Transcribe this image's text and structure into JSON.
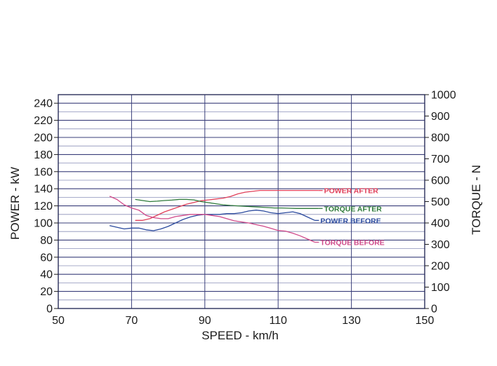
{
  "chart_data": {
    "type": "line",
    "title": "",
    "xlabel": "SPEED - km/h",
    "ylabel": "POWER - kW",
    "y2label": "TORQUE - N",
    "xlim": [
      50,
      150
    ],
    "ylim": [
      0,
      250
    ],
    "y2lim": [
      0,
      1000
    ],
    "x_ticks": [
      "50",
      "70",
      "90",
      "110",
      "130",
      "150"
    ],
    "y_ticks": [
      "0",
      "20",
      "40",
      "60",
      "80",
      "100",
      "120",
      "140",
      "160",
      "180",
      "200",
      "220",
      "240"
    ],
    "y2_ticks": [
      "0",
      "100",
      "200",
      "300",
      "400",
      "500",
      "600",
      "700",
      "800",
      "900",
      "1000"
    ],
    "grid": true,
    "legend": "inline-right",
    "series": [
      {
        "name": "POWER AFTER",
        "axis": "left",
        "color": "#e0405a",
        "x": [
          71,
          73,
          75,
          77,
          79,
          81,
          83,
          85,
          87,
          89,
          91,
          93,
          95,
          97,
          99,
          101,
          103,
          105,
          107,
          109,
          111,
          113,
          115,
          117,
          119,
          121
        ],
        "y": [
          103,
          103,
          105,
          109,
          113,
          116,
          119,
          122,
          124,
          126,
          127,
          128,
          129,
          131,
          134,
          136,
          137,
          138,
          138,
          138,
          138,
          138,
          138,
          138,
          138,
          138
        ]
      },
      {
        "name": "TORQUE AFTER",
        "axis": "right",
        "color": "#2e7a3a",
        "x": [
          71,
          73,
          75,
          77,
          79,
          81,
          83,
          85,
          87,
          89,
          91,
          93,
          95,
          97,
          99,
          101,
          103,
          105,
          107,
          109,
          111,
          113,
          115,
          117,
          119,
          121
        ],
        "y": [
          510,
          505,
          500,
          502,
          505,
          507,
          510,
          510,
          508,
          500,
          495,
          490,
          485,
          482,
          480,
          478,
          476,
          474,
          472,
          470,
          470,
          469,
          468,
          468,
          468,
          468
        ]
      },
      {
        "name": "POWER BEFORE",
        "axis": "left",
        "color": "#2b4a9e",
        "x": [
          64,
          66,
          68,
          70,
          72,
          74,
          76,
          78,
          80,
          82,
          84,
          86,
          88,
          90,
          92,
          94,
          96,
          98,
          100,
          102,
          104,
          106,
          108,
          110,
          112,
          114,
          116,
          118,
          120
        ],
        "y": [
          97,
          95,
          93,
          94,
          94,
          92,
          91,
          93,
          96,
          100,
          104,
          107,
          109,
          110,
          110,
          110,
          111,
          111,
          112,
          114,
          115,
          114,
          112,
          111,
          112,
          113,
          111,
          107,
          103
        ]
      },
      {
        "name": "TORQUE BEFORE",
        "axis": "right",
        "color": "#d04a8a",
        "x": [
          64,
          66,
          68,
          70,
          72,
          74,
          76,
          78,
          80,
          82,
          84,
          86,
          88,
          90,
          92,
          94,
          96,
          98,
          100,
          102,
          104,
          106,
          108,
          110,
          112,
          114,
          116,
          118,
          120
        ],
        "y": [
          525,
          510,
          485,
          470,
          460,
          435,
          425,
          420,
          420,
          430,
          435,
          440,
          440,
          440,
          435,
          430,
          420,
          410,
          405,
          400,
          392,
          385,
          375,
          365,
          362,
          352,
          340,
          325,
          310
        ]
      }
    ]
  }
}
